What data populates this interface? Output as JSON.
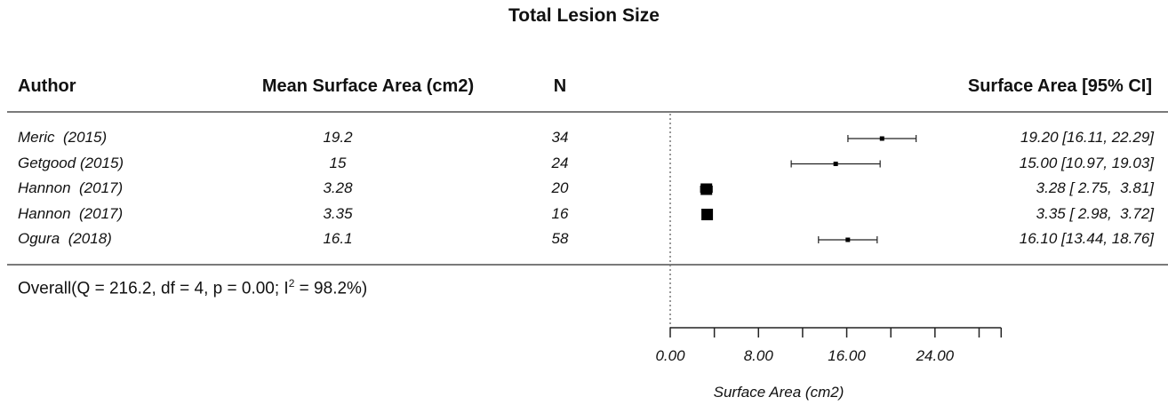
{
  "chart_data": {
    "type": "forest",
    "title": "Total Lesion Size",
    "columns": {
      "author": "Author",
      "mean": "Mean Surface Area (cm2)",
      "n": "N",
      "ci": "Surface Area [95% CI]"
    },
    "rows": [
      {
        "author": "Meric  (2015)",
        "mean_text": "19.2",
        "n": "34",
        "estimate": 19.2,
        "lower": 16.11,
        "upper": 22.29,
        "ci_text": "19.20 [16.11, 22.29]"
      },
      {
        "author": "Getgood (2015)",
        "mean_text": "15",
        "n": "24",
        "estimate": 15.0,
        "lower": 10.97,
        "upper": 19.03,
        "ci_text": "15.00 [10.97, 19.03]"
      },
      {
        "author": "Hannon  (2017)",
        "mean_text": "3.28",
        "n": "20",
        "estimate": 3.28,
        "lower": 2.75,
        "upper": 3.81,
        "ci_text": "3.28 [ 2.75,  3.81]"
      },
      {
        "author": "Hannon  (2017)",
        "mean_text": "3.35",
        "n": "16",
        "estimate": 3.35,
        "lower": 2.98,
        "upper": 3.72,
        "ci_text": "3.35 [ 2.98,  3.72]"
      },
      {
        "author": "Ogura  (2018)",
        "mean_text": "16.1",
        "n": "58",
        "estimate": 16.1,
        "lower": 13.44,
        "upper": 18.76,
        "ci_text": "16.10 [13.44, 18.76]"
      }
    ],
    "overall": {
      "prefix": "Overall(Q = 216.2, df = 4, p = 0.00; I",
      "sup": "2",
      "suffix": " = 98.2%)"
    },
    "xaxis": {
      "label": "Surface Area (cm2)",
      "range": [
        0,
        30
      ],
      "ticks": [
        0,
        4,
        8,
        12,
        16,
        20,
        24,
        28,
        30
      ],
      "labeled_ticks": [
        {
          "value": 0,
          "label": "0.00"
        },
        {
          "value": 8,
          "label": "8.00"
        },
        {
          "value": 16,
          "label": "16.00"
        },
        {
          "value": 24,
          "label": "24.00"
        }
      ]
    },
    "reference_line": 0
  }
}
